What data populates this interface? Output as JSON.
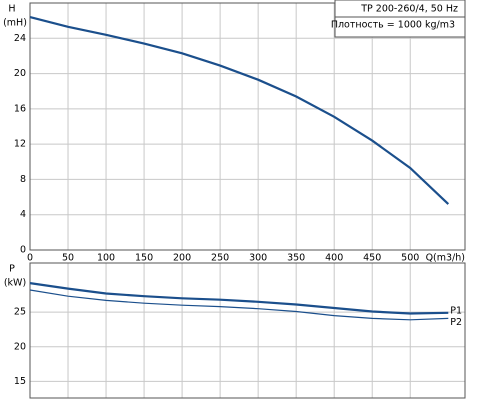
{
  "chart_data": [
    {
      "type": "line",
      "info": [
        "TP 200-260/4, 50 Hz",
        "Плотность = 1000 kg/m3"
      ],
      "y_label": "H",
      "y_unit": "(mH)",
      "x_label": "Q(m3/h)",
      "x": [
        0,
        50,
        100,
        150,
        200,
        250,
        300,
        350,
        400,
        450,
        500,
        550
      ],
      "series": [
        {
          "name": "H",
          "color": "#1b4f8c",
          "values": [
            26.4,
            25.3,
            24.4,
            23.4,
            22.3,
            20.9,
            19.3,
            17.4,
            15.1,
            12.4,
            9.3,
            5.2
          ]
        }
      ],
      "xlim": [
        0,
        572
      ],
      "xticks": [
        0,
        50,
        100,
        150,
        200,
        250,
        300,
        350,
        400,
        450,
        500
      ],
      "ylim": [
        0,
        28
      ],
      "yticks": [
        0,
        4,
        8,
        12,
        16,
        20,
        24
      ],
      "grid": true
    },
    {
      "type": "line",
      "y_label": "P",
      "y_unit": "(kW)",
      "x": [
        0,
        50,
        100,
        150,
        200,
        250,
        300,
        350,
        400,
        450,
        500,
        550
      ],
      "series": [
        {
          "name": "P1",
          "color": "#1b4f8c",
          "values": [
            29.2,
            28.4,
            27.7,
            27.3,
            27.0,
            26.8,
            26.5,
            26.1,
            25.6,
            25.1,
            24.8,
            24.9
          ]
        },
        {
          "name": "P2",
          "color": "#1b4f8c",
          "values": [
            28.2,
            27.3,
            26.7,
            26.3,
            26.0,
            25.8,
            25.5,
            25.1,
            24.5,
            24.1,
            23.9,
            24.1
          ]
        }
      ],
      "xlim": [
        0,
        572
      ],
      "xticks": [
        0,
        50,
        100,
        150,
        200,
        250,
        300,
        350,
        400,
        450,
        500
      ],
      "ylim": [
        12.6,
        32.1
      ],
      "yticks": [
        15,
        20,
        25
      ],
      "grid": true
    }
  ]
}
